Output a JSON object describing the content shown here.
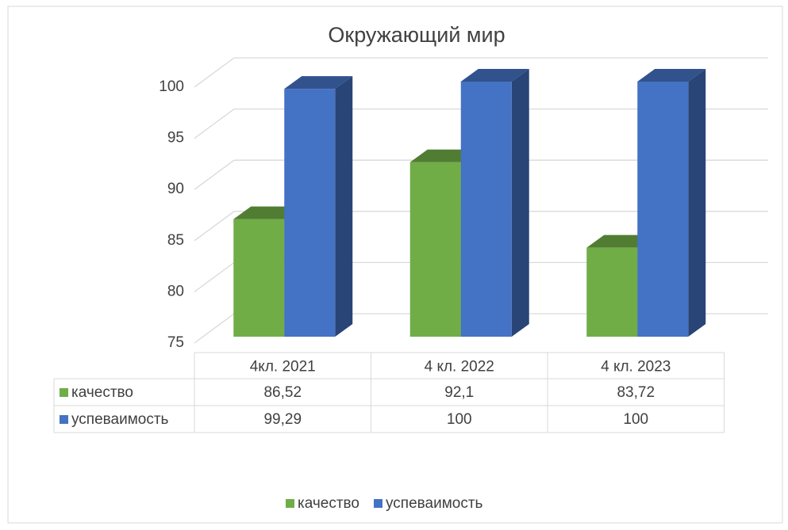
{
  "chart_data": {
    "type": "bar3d",
    "title": "Окружающий мир",
    "categories": [
      "4кл. 2021",
      "4 кл. 2022",
      "4 кл. 2023"
    ],
    "series": [
      {
        "name": "качество",
        "color": "#70ad47",
        "values": [
          86.52,
          92.1,
          83.72
        ],
        "value_labels": [
          "86,52",
          "92,1",
          "83,72"
        ]
      },
      {
        "name": "успеваимость",
        "color": "#4472c4",
        "values": [
          99.29,
          100,
          100
        ],
        "value_labels": [
          "99,29",
          "100",
          "100"
        ]
      }
    ],
    "ylim": [
      75,
      100
    ],
    "yticks": [
      75,
      80,
      85,
      90,
      95,
      100
    ],
    "grid": true,
    "legend": "bottom"
  }
}
